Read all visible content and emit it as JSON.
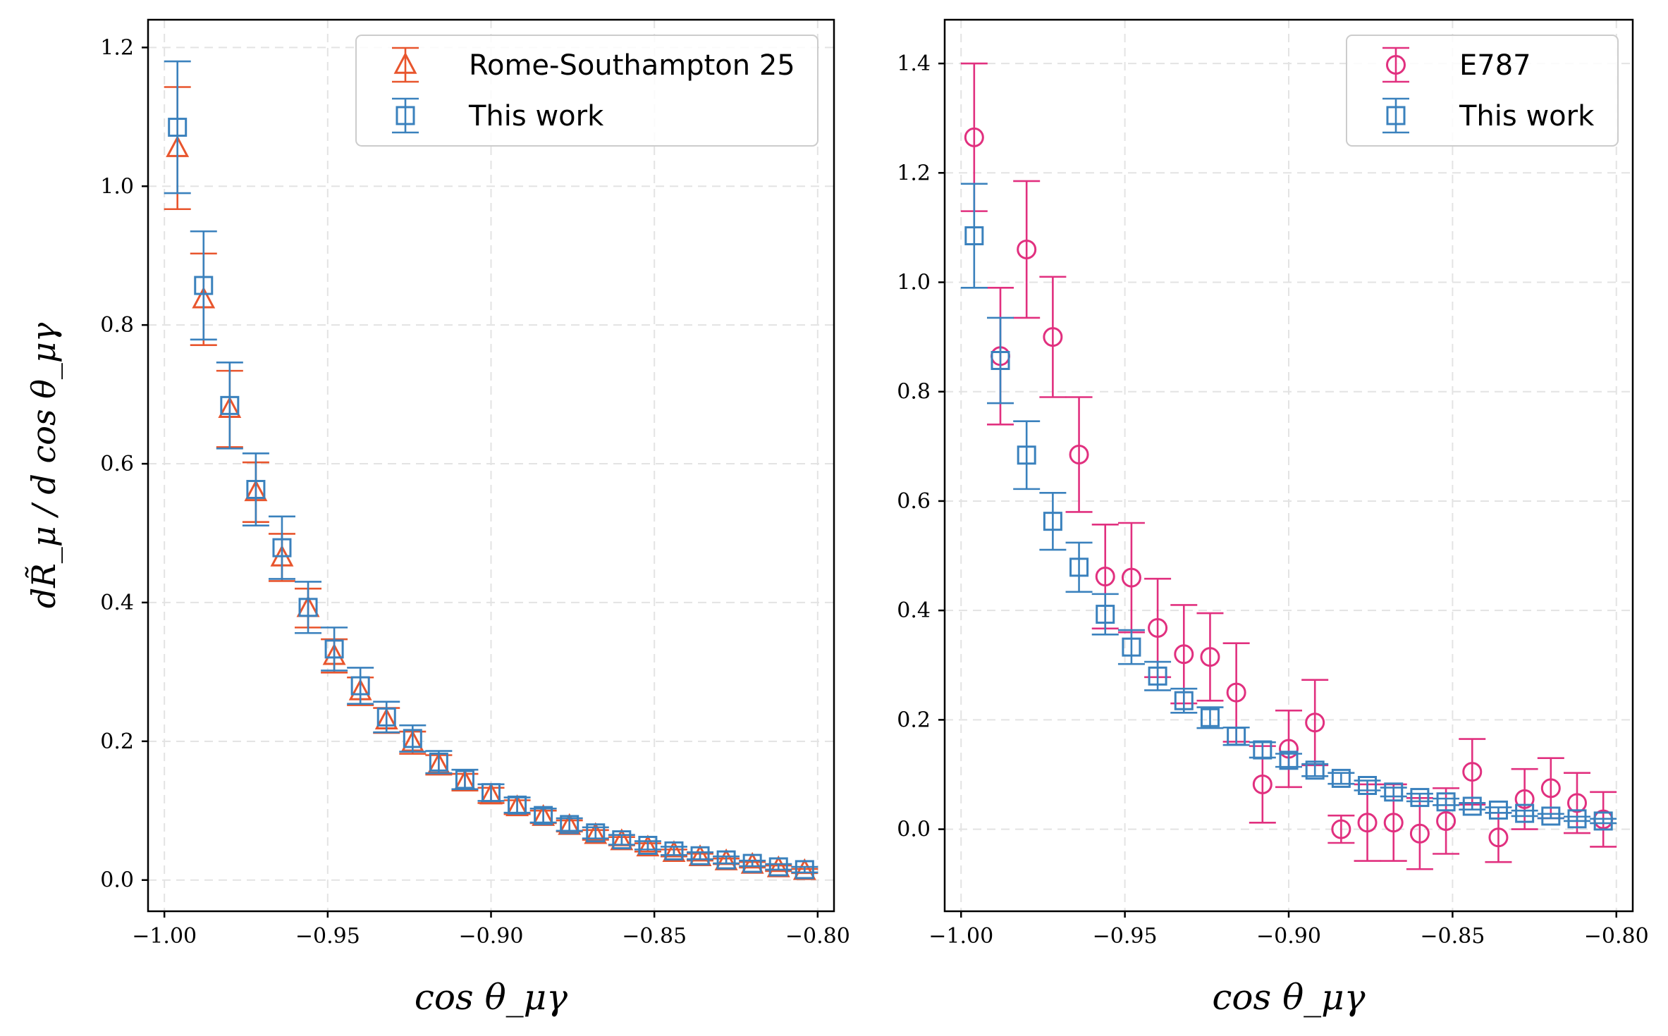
{
  "chart_data": [
    {
      "type": "scatter",
      "panel": "left",
      "xlabel": "cos θ_μγ",
      "ylabel": "dR̃_μ / d cos θ_μγ",
      "xlim": [
        -1.005,
        -0.795
      ],
      "ylim": [
        -0.045,
        1.24
      ],
      "xticks": [
        -1.0,
        -0.95,
        -0.9,
        -0.85,
        -0.8
      ],
      "xtick_labels": [
        "−1.00",
        "−0.95",
        "−0.90",
        "−0.85",
        "−0.80"
      ],
      "yticks": [
        0.0,
        0.2,
        0.4,
        0.6,
        0.8,
        1.0,
        1.2
      ],
      "ytick_labels": [
        "0.0",
        "0.2",
        "0.4",
        "0.6",
        "0.8",
        "1.0",
        "1.2"
      ],
      "grid": true,
      "legend_position": "top-right",
      "series": [
        {
          "name": "Rome-Southampton 25",
          "marker": "triangle",
          "color": "#e8552d",
          "x": [
            -0.996,
            -0.988,
            -0.98,
            -0.972,
            -0.964,
            -0.956,
            -0.948,
            -0.94,
            -0.932,
            -0.924,
            -0.916,
            -0.908,
            -0.9,
            -0.892,
            -0.884,
            -0.876,
            -0.868,
            -0.86,
            -0.852,
            -0.844,
            -0.836,
            -0.828,
            -0.82,
            -0.812,
            -0.804
          ],
          "y": [
            1.055,
            0.837,
            0.679,
            0.559,
            0.465,
            0.392,
            0.323,
            0.272,
            0.23,
            0.198,
            0.166,
            0.141,
            0.122,
            0.105,
            0.091,
            0.078,
            0.065,
            0.056,
            0.047,
            0.039,
            0.033,
            0.027,
            0.022,
            0.017,
            0.013
          ],
          "err": [
            0.088,
            0.066,
            0.055,
            0.043,
            0.034,
            0.028,
            0.024,
            0.02,
            0.018,
            0.016,
            0.014,
            0.012,
            0.011,
            0.01,
            0.009,
            0.008,
            0.007,
            0.006,
            0.006,
            0.005,
            0.005,
            0.004,
            0.004,
            0.004,
            0.003
          ]
        },
        {
          "name": "This work",
          "marker": "square",
          "color": "#3a81bd",
          "x": [
            -0.996,
            -0.988,
            -0.98,
            -0.972,
            -0.964,
            -0.956,
            -0.948,
            -0.94,
            -0.932,
            -0.924,
            -0.916,
            -0.908,
            -0.9,
            -0.892,
            -0.884,
            -0.876,
            -0.868,
            -0.86,
            -0.852,
            -0.844,
            -0.836,
            -0.828,
            -0.82,
            -0.812,
            -0.804
          ],
          "y": [
            1.085,
            0.857,
            0.684,
            0.563,
            0.479,
            0.393,
            0.333,
            0.28,
            0.235,
            0.204,
            0.17,
            0.145,
            0.126,
            0.108,
            0.093,
            0.08,
            0.068,
            0.058,
            0.05,
            0.042,
            0.035,
            0.029,
            0.024,
            0.019,
            0.015
          ],
          "err": [
            0.095,
            0.078,
            0.062,
            0.052,
            0.045,
            0.037,
            0.031,
            0.026,
            0.022,
            0.019,
            0.016,
            0.014,
            0.012,
            0.011,
            0.01,
            0.009,
            0.008,
            0.007,
            0.006,
            0.006,
            0.005,
            0.005,
            0.004,
            0.004,
            0.004
          ]
        }
      ]
    },
    {
      "type": "scatter",
      "panel": "right",
      "xlabel": "cos θ_μγ",
      "ylabel": "",
      "xlim": [
        -1.005,
        -0.795
      ],
      "ylim": [
        -0.15,
        1.48
      ],
      "xticks": [
        -1.0,
        -0.95,
        -0.9,
        -0.85,
        -0.8
      ],
      "xtick_labels": [
        "−1.00",
        "−0.95",
        "−0.90",
        "−0.85",
        "−0.80"
      ],
      "yticks": [
        0.0,
        0.2,
        0.4,
        0.6,
        0.8,
        1.0,
        1.2,
        1.4
      ],
      "ytick_labels": [
        "0.0",
        "0.2",
        "0.4",
        "0.6",
        "0.8",
        "1.0",
        "1.2",
        "1.4"
      ],
      "grid": true,
      "legend_position": "top-right",
      "series": [
        {
          "name": "E787",
          "marker": "circle",
          "color": "#e1307f",
          "x": [
            -0.996,
            -0.988,
            -0.98,
            -0.972,
            -0.964,
            -0.956,
            -0.948,
            -0.94,
            -0.932,
            -0.924,
            -0.916,
            -0.908,
            -0.9,
            -0.892,
            -0.884,
            -0.876,
            -0.868,
            -0.86,
            -0.852,
            -0.844,
            -0.836,
            -0.828,
            -0.82,
            -0.812,
            -0.804
          ],
          "y": [
            1.265,
            0.865,
            1.06,
            0.9,
            0.685,
            0.462,
            0.46,
            0.368,
            0.32,
            0.315,
            0.25,
            0.082,
            0.147,
            0.195,
            0.0,
            0.012,
            0.012,
            -0.008,
            0.015,
            0.105,
            -0.015,
            0.055,
            0.075,
            0.048,
            0.018
          ],
          "err": [
            0.135,
            0.125,
            0.125,
            0.11,
            0.105,
            0.095,
            0.1,
            0.09,
            0.09,
            0.08,
            0.09,
            0.07,
            0.07,
            0.078,
            0.025,
            0.07,
            0.07,
            0.065,
            0.06,
            0.06,
            0.045,
            0.055,
            0.055,
            0.055,
            0.05
          ]
        },
        {
          "name": "This work",
          "marker": "square",
          "color": "#3a81bd",
          "x": [
            -0.996,
            -0.988,
            -0.98,
            -0.972,
            -0.964,
            -0.956,
            -0.948,
            -0.94,
            -0.932,
            -0.924,
            -0.916,
            -0.908,
            -0.9,
            -0.892,
            -0.884,
            -0.876,
            -0.868,
            -0.86,
            -0.852,
            -0.844,
            -0.836,
            -0.828,
            -0.82,
            -0.812,
            -0.804
          ],
          "y": [
            1.085,
            0.857,
            0.684,
            0.563,
            0.479,
            0.393,
            0.333,
            0.28,
            0.235,
            0.204,
            0.17,
            0.145,
            0.126,
            0.108,
            0.093,
            0.08,
            0.068,
            0.058,
            0.05,
            0.042,
            0.035,
            0.029,
            0.024,
            0.019,
            0.015
          ],
          "err": [
            0.095,
            0.078,
            0.062,
            0.052,
            0.045,
            0.037,
            0.031,
            0.026,
            0.022,
            0.019,
            0.016,
            0.014,
            0.012,
            0.011,
            0.01,
            0.009,
            0.008,
            0.007,
            0.006,
            0.006,
            0.005,
            0.005,
            0.004,
            0.004,
            0.004
          ]
        }
      ]
    }
  ]
}
